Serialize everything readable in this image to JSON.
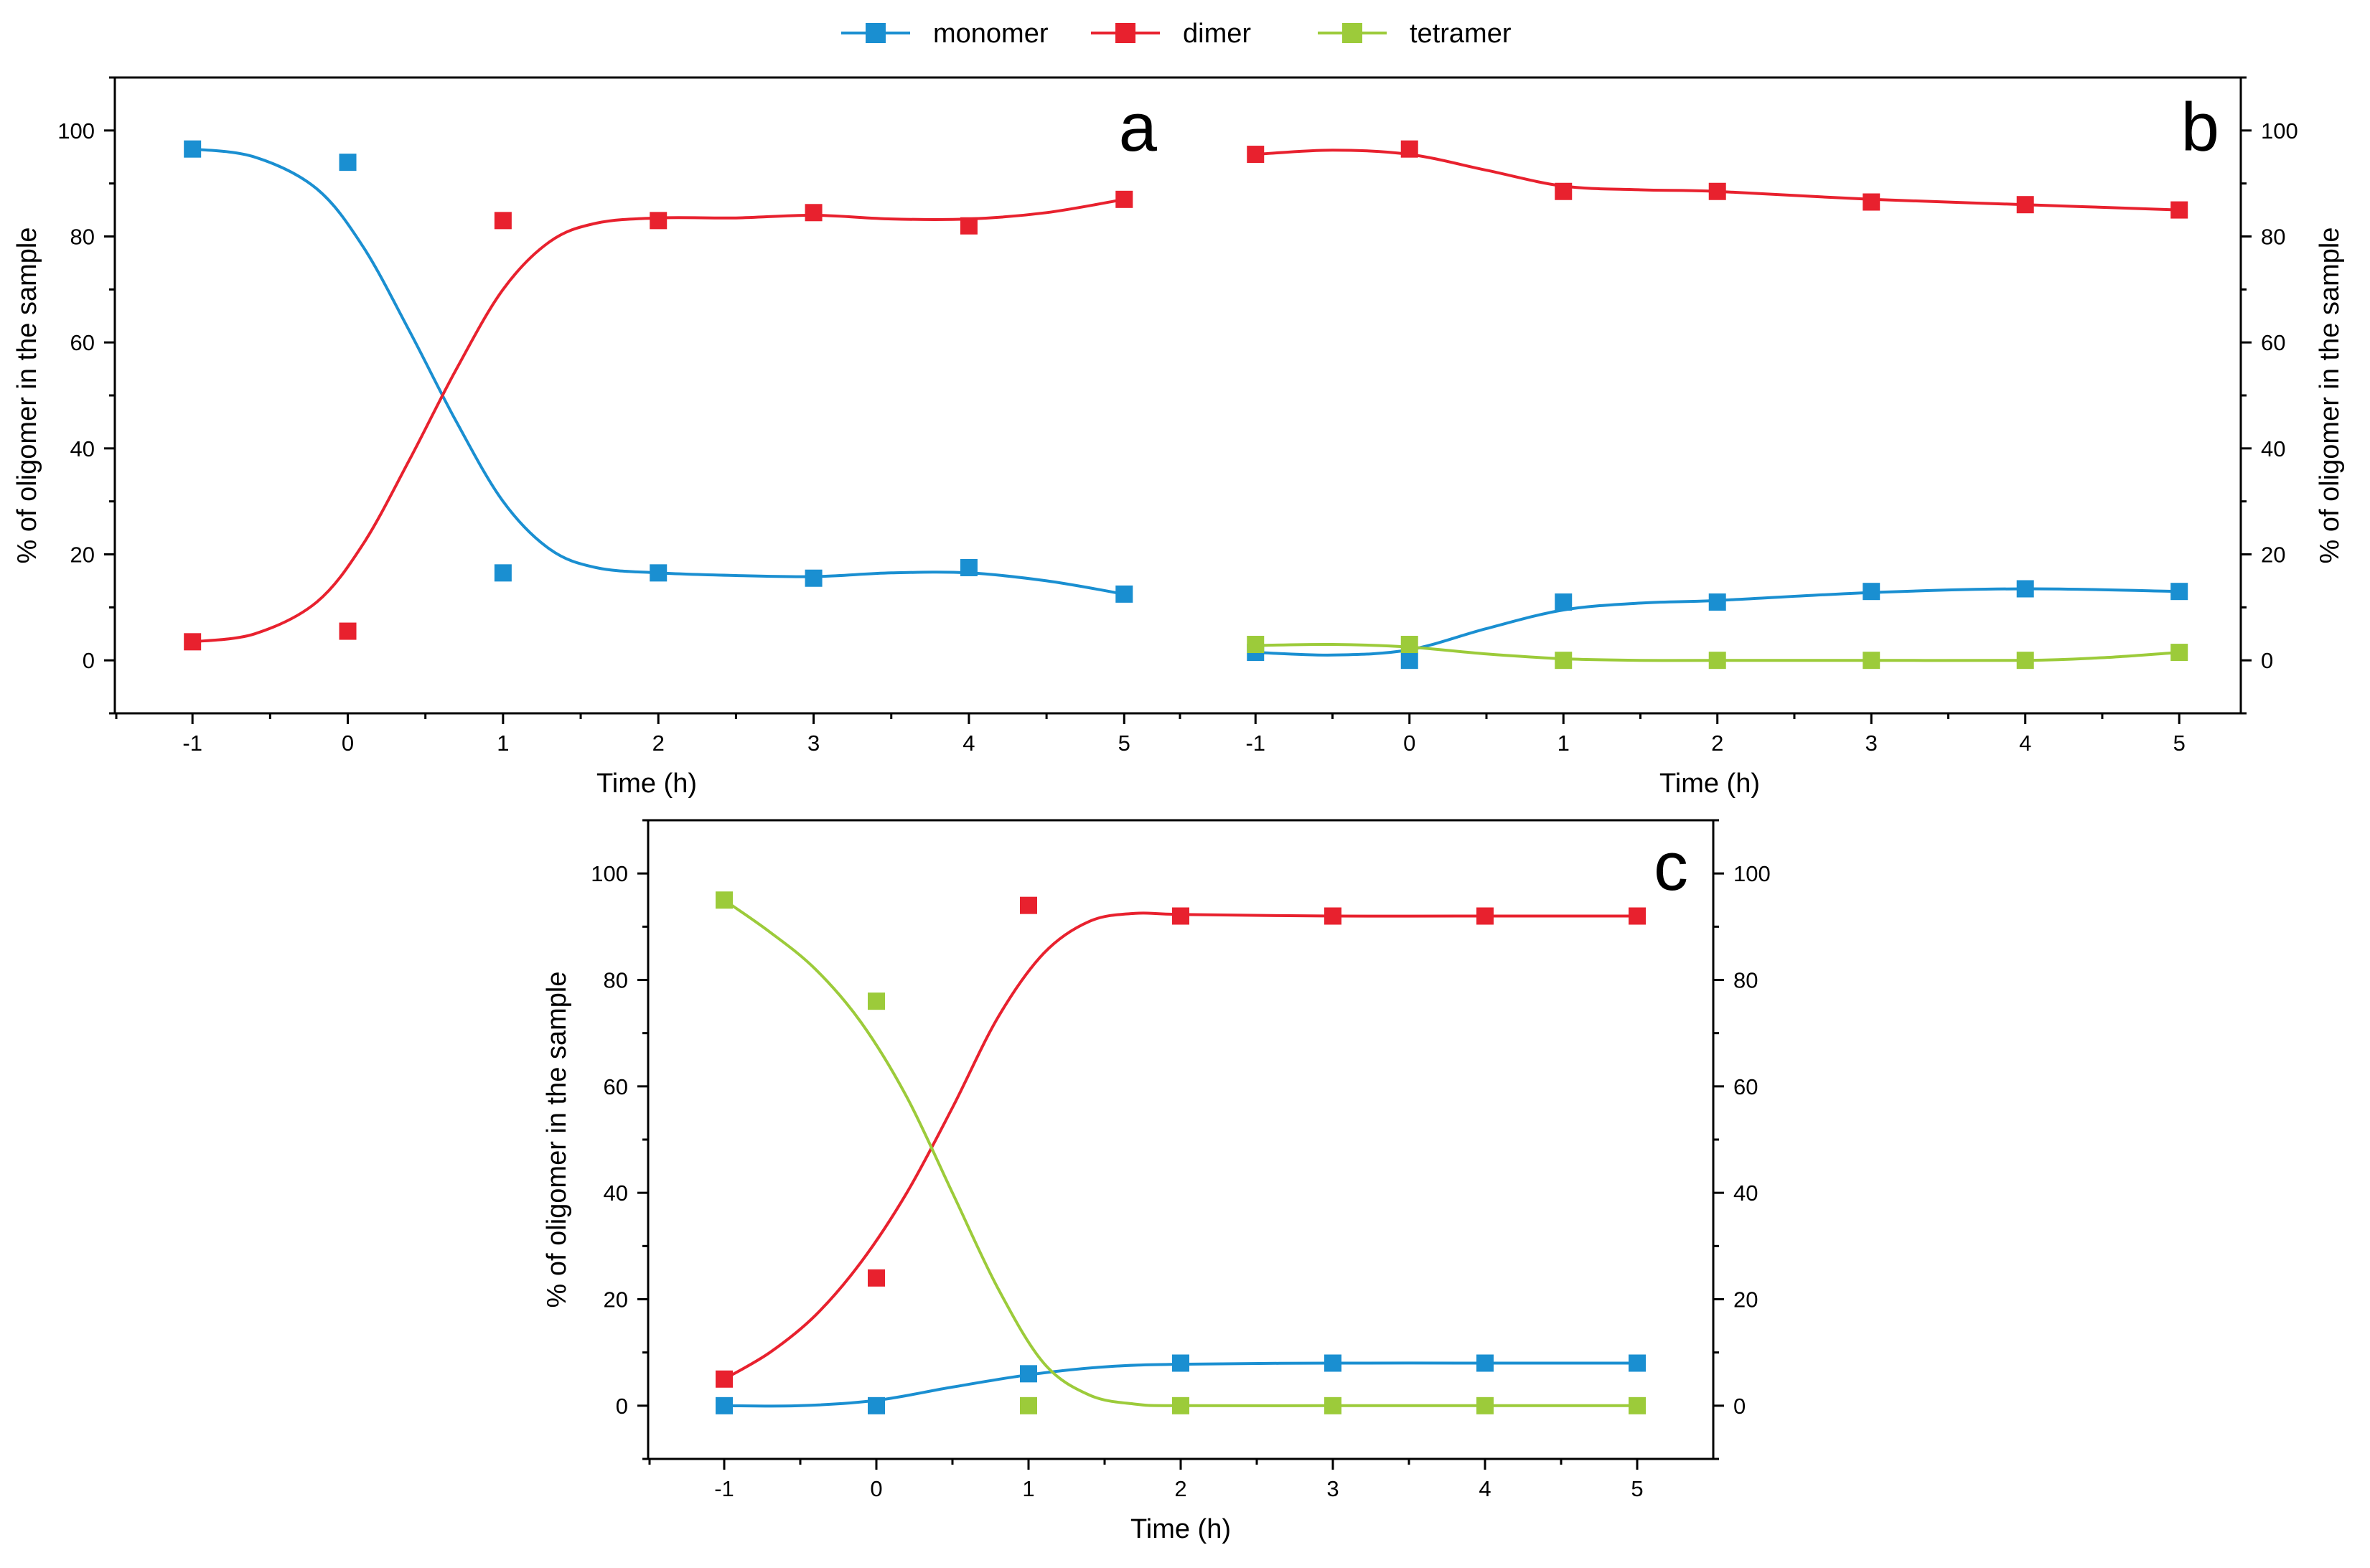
{
  "colors": {
    "monomer": "#1a8fd1",
    "dimer": "#e8212e",
    "tetramer": "#9ccb3a"
  },
  "legend": [
    {
      "key": "monomer",
      "label": "monomer"
    },
    {
      "key": "dimer",
      "label": "dimer"
    },
    {
      "key": "tetramer",
      "label": "tetramer"
    }
  ],
  "chart_data": [
    {
      "type": "line",
      "panel": "a",
      "xlabel": "Time (h)",
      "ylabel": "% of oligomer in the sample",
      "xlim": [
        -1.5,
        5.35
      ],
      "ylim": [
        -10,
        110
      ],
      "x_ticks": [
        "-1",
        "0",
        "1",
        "2",
        "3",
        "4",
        "5"
      ],
      "y_ticks": [
        "0",
        "20",
        "40",
        "60",
        "80",
        "100"
      ],
      "y_axis_side": "left",
      "x": [
        -1,
        0,
        1,
        2,
        3,
        4,
        5
      ],
      "series": [
        {
          "key": "monomer",
          "points": [
            96.5,
            94,
            16.5,
            16.5,
            15.5,
            17.5,
            12.5
          ],
          "curve": [
            [
              -1,
              96.5
            ],
            [
              -0.6,
              95
            ],
            [
              -0.2,
              89
            ],
            [
              0.1,
              78
            ],
            [
              0.4,
              62
            ],
            [
              0.7,
              45
            ],
            [
              1.0,
              30
            ],
            [
              1.3,
              21
            ],
            [
              1.6,
              17.5
            ],
            [
              2,
              16.5
            ],
            [
              2.5,
              16
            ],
            [
              3,
              15.8
            ],
            [
              3.5,
              16.5
            ],
            [
              4,
              16.5
            ],
            [
              4.5,
              15
            ],
            [
              5,
              12.5
            ]
          ]
        },
        {
          "key": "dimer",
          "points": [
            3.5,
            5.5,
            83,
            83,
            84.5,
            82,
            87
          ],
          "curve": [
            [
              -1,
              3.5
            ],
            [
              -0.6,
              5
            ],
            [
              -0.2,
              11
            ],
            [
              0.1,
              22
            ],
            [
              0.4,
              38
            ],
            [
              0.7,
              55
            ],
            [
              1.0,
              70
            ],
            [
              1.3,
              79
            ],
            [
              1.6,
              82.5
            ],
            [
              2,
              83.5
            ],
            [
              2.5,
              83.5
            ],
            [
              3,
              84
            ],
            [
              3.5,
              83.3
            ],
            [
              4,
              83.3
            ],
            [
              4.5,
              84.5
            ],
            [
              5,
              87
            ]
          ]
        }
      ]
    },
    {
      "type": "line",
      "panel": "b",
      "xlabel": "Time (h)",
      "ylabel": "% of oligomer in the sample",
      "xlim": [
        -1.5,
        5.4
      ],
      "ylim": [
        -10,
        110
      ],
      "x_ticks": [
        "-1",
        "0",
        "1",
        "2",
        "3",
        "4",
        "5"
      ],
      "y_ticks": [
        "0",
        "20",
        "40",
        "60",
        "80",
        "100"
      ],
      "y_axis_side": "right",
      "x": [
        -1,
        0,
        1,
        2,
        3,
        4,
        5
      ],
      "series": [
        {
          "key": "monomer",
          "points": [
            1.5,
            0,
            11,
            11,
            13,
            13.5,
            13
          ],
          "curve": [
            [
              -1,
              1.5
            ],
            [
              -0.5,
              1
            ],
            [
              0,
              2
            ],
            [
              0.5,
              6
            ],
            [
              1,
              9.5
            ],
            [
              1.5,
              10.8
            ],
            [
              2,
              11.3
            ],
            [
              3,
              12.8
            ],
            [
              4,
              13.5
            ],
            [
              5,
              13
            ]
          ]
        },
        {
          "key": "dimer",
          "points": [
            95.5,
            96.5,
            88.5,
            88.5,
            86.5,
            86,
            85
          ],
          "curve": [
            [
              -1,
              95.5
            ],
            [
              -0.5,
              96.3
            ],
            [
              0,
              95.5
            ],
            [
              0.5,
              92.5
            ],
            [
              1,
              89.5
            ],
            [
              1.5,
              88.8
            ],
            [
              2,
              88.5
            ],
            [
              3,
              87
            ],
            [
              4,
              86
            ],
            [
              5,
              85
            ]
          ]
        },
        {
          "key": "tetramer",
          "points": [
            3,
            3,
            0,
            0,
            0,
            0,
            1.5
          ],
          "curve": [
            [
              -1,
              2.8
            ],
            [
              -0.5,
              3
            ],
            [
              0,
              2.5
            ],
            [
              0.5,
              1.2
            ],
            [
              1,
              0.3
            ],
            [
              1.5,
              0
            ],
            [
              2,
              0
            ],
            [
              3,
              0
            ],
            [
              4,
              0
            ],
            [
              4.5,
              0.5
            ],
            [
              5,
              1.5
            ]
          ]
        }
      ]
    },
    {
      "type": "line",
      "panel": "c",
      "xlabel": "Time (h)",
      "ylabel": "% of oligomer in the sample",
      "xlim": [
        -1.5,
        5.5
      ],
      "ylim": [
        -10,
        110
      ],
      "x_ticks": [
        "-1",
        "0",
        "1",
        "2",
        "3",
        "4",
        "5"
      ],
      "y_ticks": [
        "0",
        "20",
        "40",
        "60",
        "80",
        "100"
      ],
      "y_axis_side": "both",
      "x": [
        -1,
        0,
        1,
        2,
        3,
        4,
        5
      ],
      "series": [
        {
          "key": "monomer",
          "points": [
            0,
            0,
            6,
            8,
            8,
            8,
            8
          ],
          "curve": [
            [
              -1,
              0
            ],
            [
              -0.5,
              0
            ],
            [
              0,
              1
            ],
            [
              0.5,
              3.5
            ],
            [
              1,
              5.8
            ],
            [
              1.5,
              7.3
            ],
            [
              2,
              7.8
            ],
            [
              3,
              8
            ],
            [
              4,
              8
            ],
            [
              5,
              8
            ]
          ]
        },
        {
          "key": "dimer",
          "points": [
            5,
            24,
            94,
            92,
            92,
            92,
            92
          ],
          "curve": [
            [
              -1,
              5
            ],
            [
              -0.7,
              10
            ],
            [
              -0.4,
              17
            ],
            [
              -0.1,
              27
            ],
            [
              0.2,
              40
            ],
            [
              0.5,
              56
            ],
            [
              0.8,
              73
            ],
            [
              1.1,
              85
            ],
            [
              1.4,
              91
            ],
            [
              1.7,
              92.5
            ],
            [
              2,
              92.3
            ],
            [
              3,
              92
            ],
            [
              4,
              92
            ],
            [
              5,
              92
            ]
          ]
        },
        {
          "key": "tetramer",
          "points": [
            95,
            76,
            0,
            0,
            0,
            0,
            0
          ],
          "curve": [
            [
              -1,
              95
            ],
            [
              -0.7,
              89
            ],
            [
              -0.4,
              82
            ],
            [
              -0.1,
              72
            ],
            [
              0.2,
              58
            ],
            [
              0.5,
              40
            ],
            [
              0.8,
              22
            ],
            [
              1.1,
              8
            ],
            [
              1.4,
              2
            ],
            [
              1.7,
              0.3
            ],
            [
              2,
              0
            ],
            [
              3,
              0
            ],
            [
              4,
              0
            ],
            [
              5,
              0
            ]
          ]
        }
      ]
    }
  ]
}
